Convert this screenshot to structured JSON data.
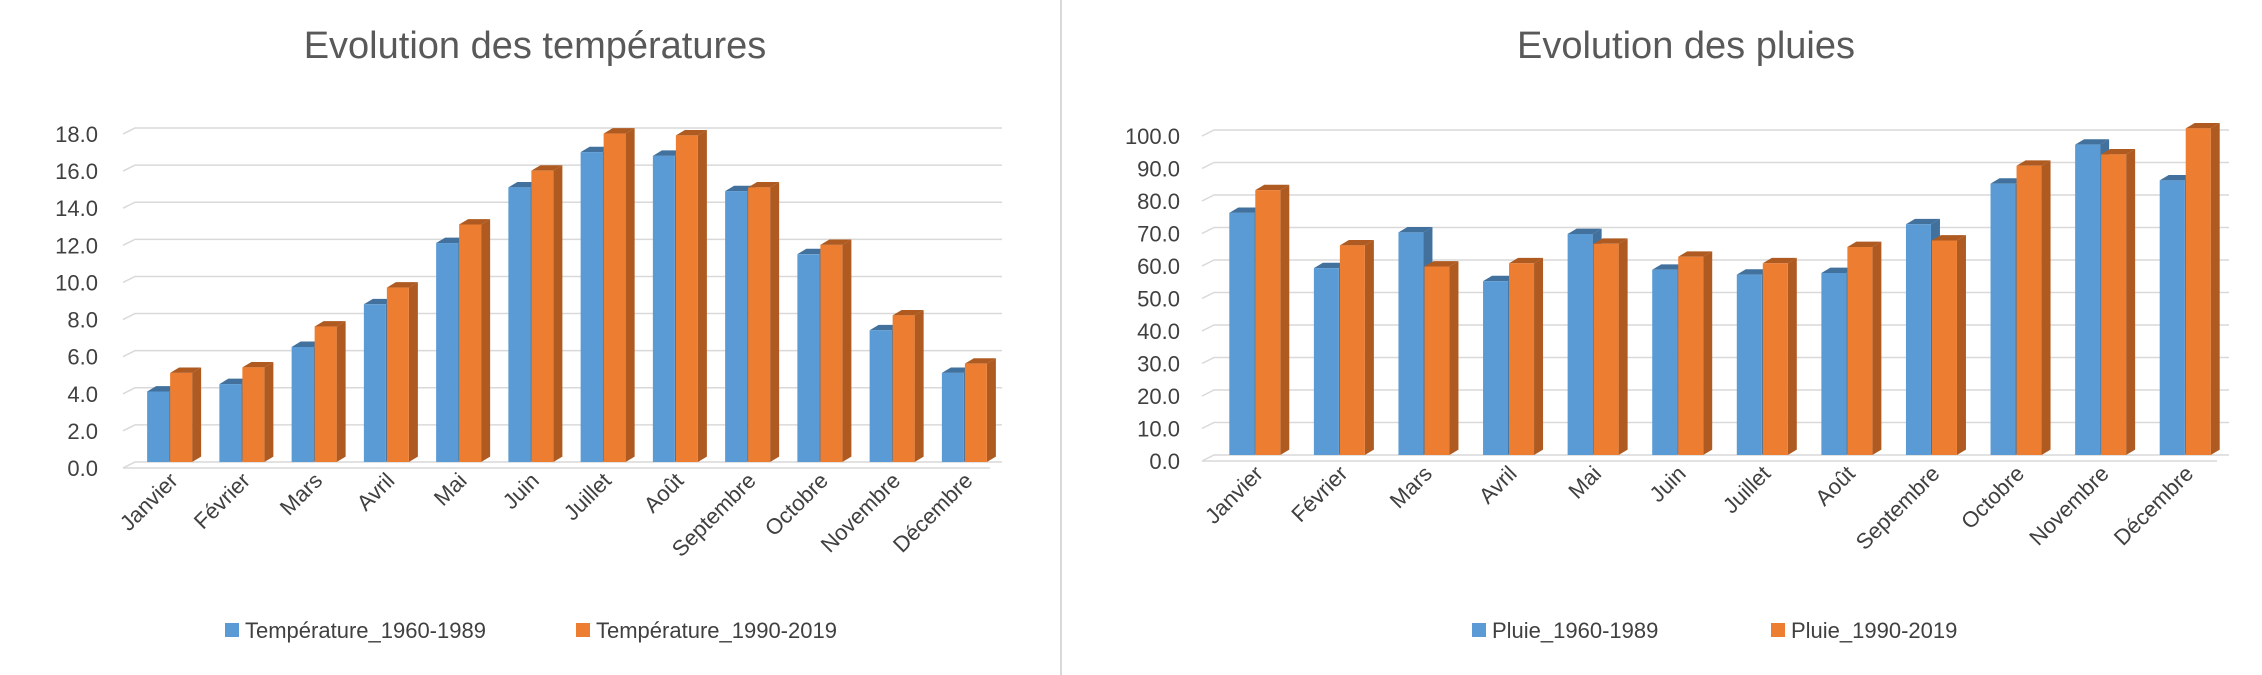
{
  "chart_data": [
    {
      "type": "bar",
      "title": "Evolution des températures",
      "categories": [
        "Janvier",
        "Février",
        "Mars",
        "Avril",
        "Mai",
        "Juin",
        "Juillet",
        "Août",
        "Septembre",
        "Octobre",
        "Novembre",
        "Décembre"
      ],
      "series": [
        {
          "name": "Température_1960-1989",
          "color": "#5b9bd5",
          "side": "#41719c",
          "values": [
            3.8,
            4.2,
            6.2,
            8.5,
            11.8,
            14.8,
            16.7,
            16.5,
            14.6,
            11.2,
            7.1,
            4.8
          ]
        },
        {
          "name": "Température_1990-2019",
          "color": "#ed7d31",
          "side": "#ae5a21",
          "values": [
            4.8,
            5.1,
            7.3,
            9.4,
            12.8,
            15.7,
            17.7,
            17.6,
            14.8,
            11.7,
            7.9,
            5.3
          ]
        }
      ],
      "ylim": [
        0,
        18
      ],
      "ystep": 2,
      "yticks": [
        "0.0",
        "2.0",
        "4.0",
        "6.0",
        "8.0",
        "10.0",
        "12.0",
        "14.0",
        "16.0",
        "18.0"
      ],
      "grid": true,
      "legend": "bottom"
    },
    {
      "type": "bar",
      "title": "Evolution des pluies",
      "categories": [
        "Janvier",
        "Février",
        "Mars",
        "Avril",
        "Mai",
        "Juin",
        "Juillet",
        "Août",
        "Septembre",
        "Octobre",
        "Novembre",
        "Décembre"
      ],
      "series": [
        {
          "name": "Pluie_1960-1989",
          "color": "#5b9bd5",
          "side": "#41719c",
          "values": [
            74.5,
            57.5,
            68.5,
            53.5,
            68.0,
            57.0,
            55.5,
            56.0,
            71.0,
            83.5,
            95.5,
            84.5
          ]
        },
        {
          "name": "Pluie_1990-2019",
          "color": "#ed7d31",
          "side": "#ae5a21",
          "values": [
            81.5,
            64.5,
            58.0,
            59.0,
            65.0,
            61.0,
            59.0,
            64.0,
            66.0,
            89.0,
            92.5,
            100.5
          ]
        }
      ],
      "ylim": [
        0,
        100
      ],
      "ystep": 10,
      "yticks": [
        "0.0",
        "10.0",
        "20.0",
        "30.0",
        "40.0",
        "50.0",
        "60.0",
        "70.0",
        "80.0",
        "90.0",
        "100.0"
      ],
      "grid": true,
      "legend": "bottom"
    }
  ]
}
